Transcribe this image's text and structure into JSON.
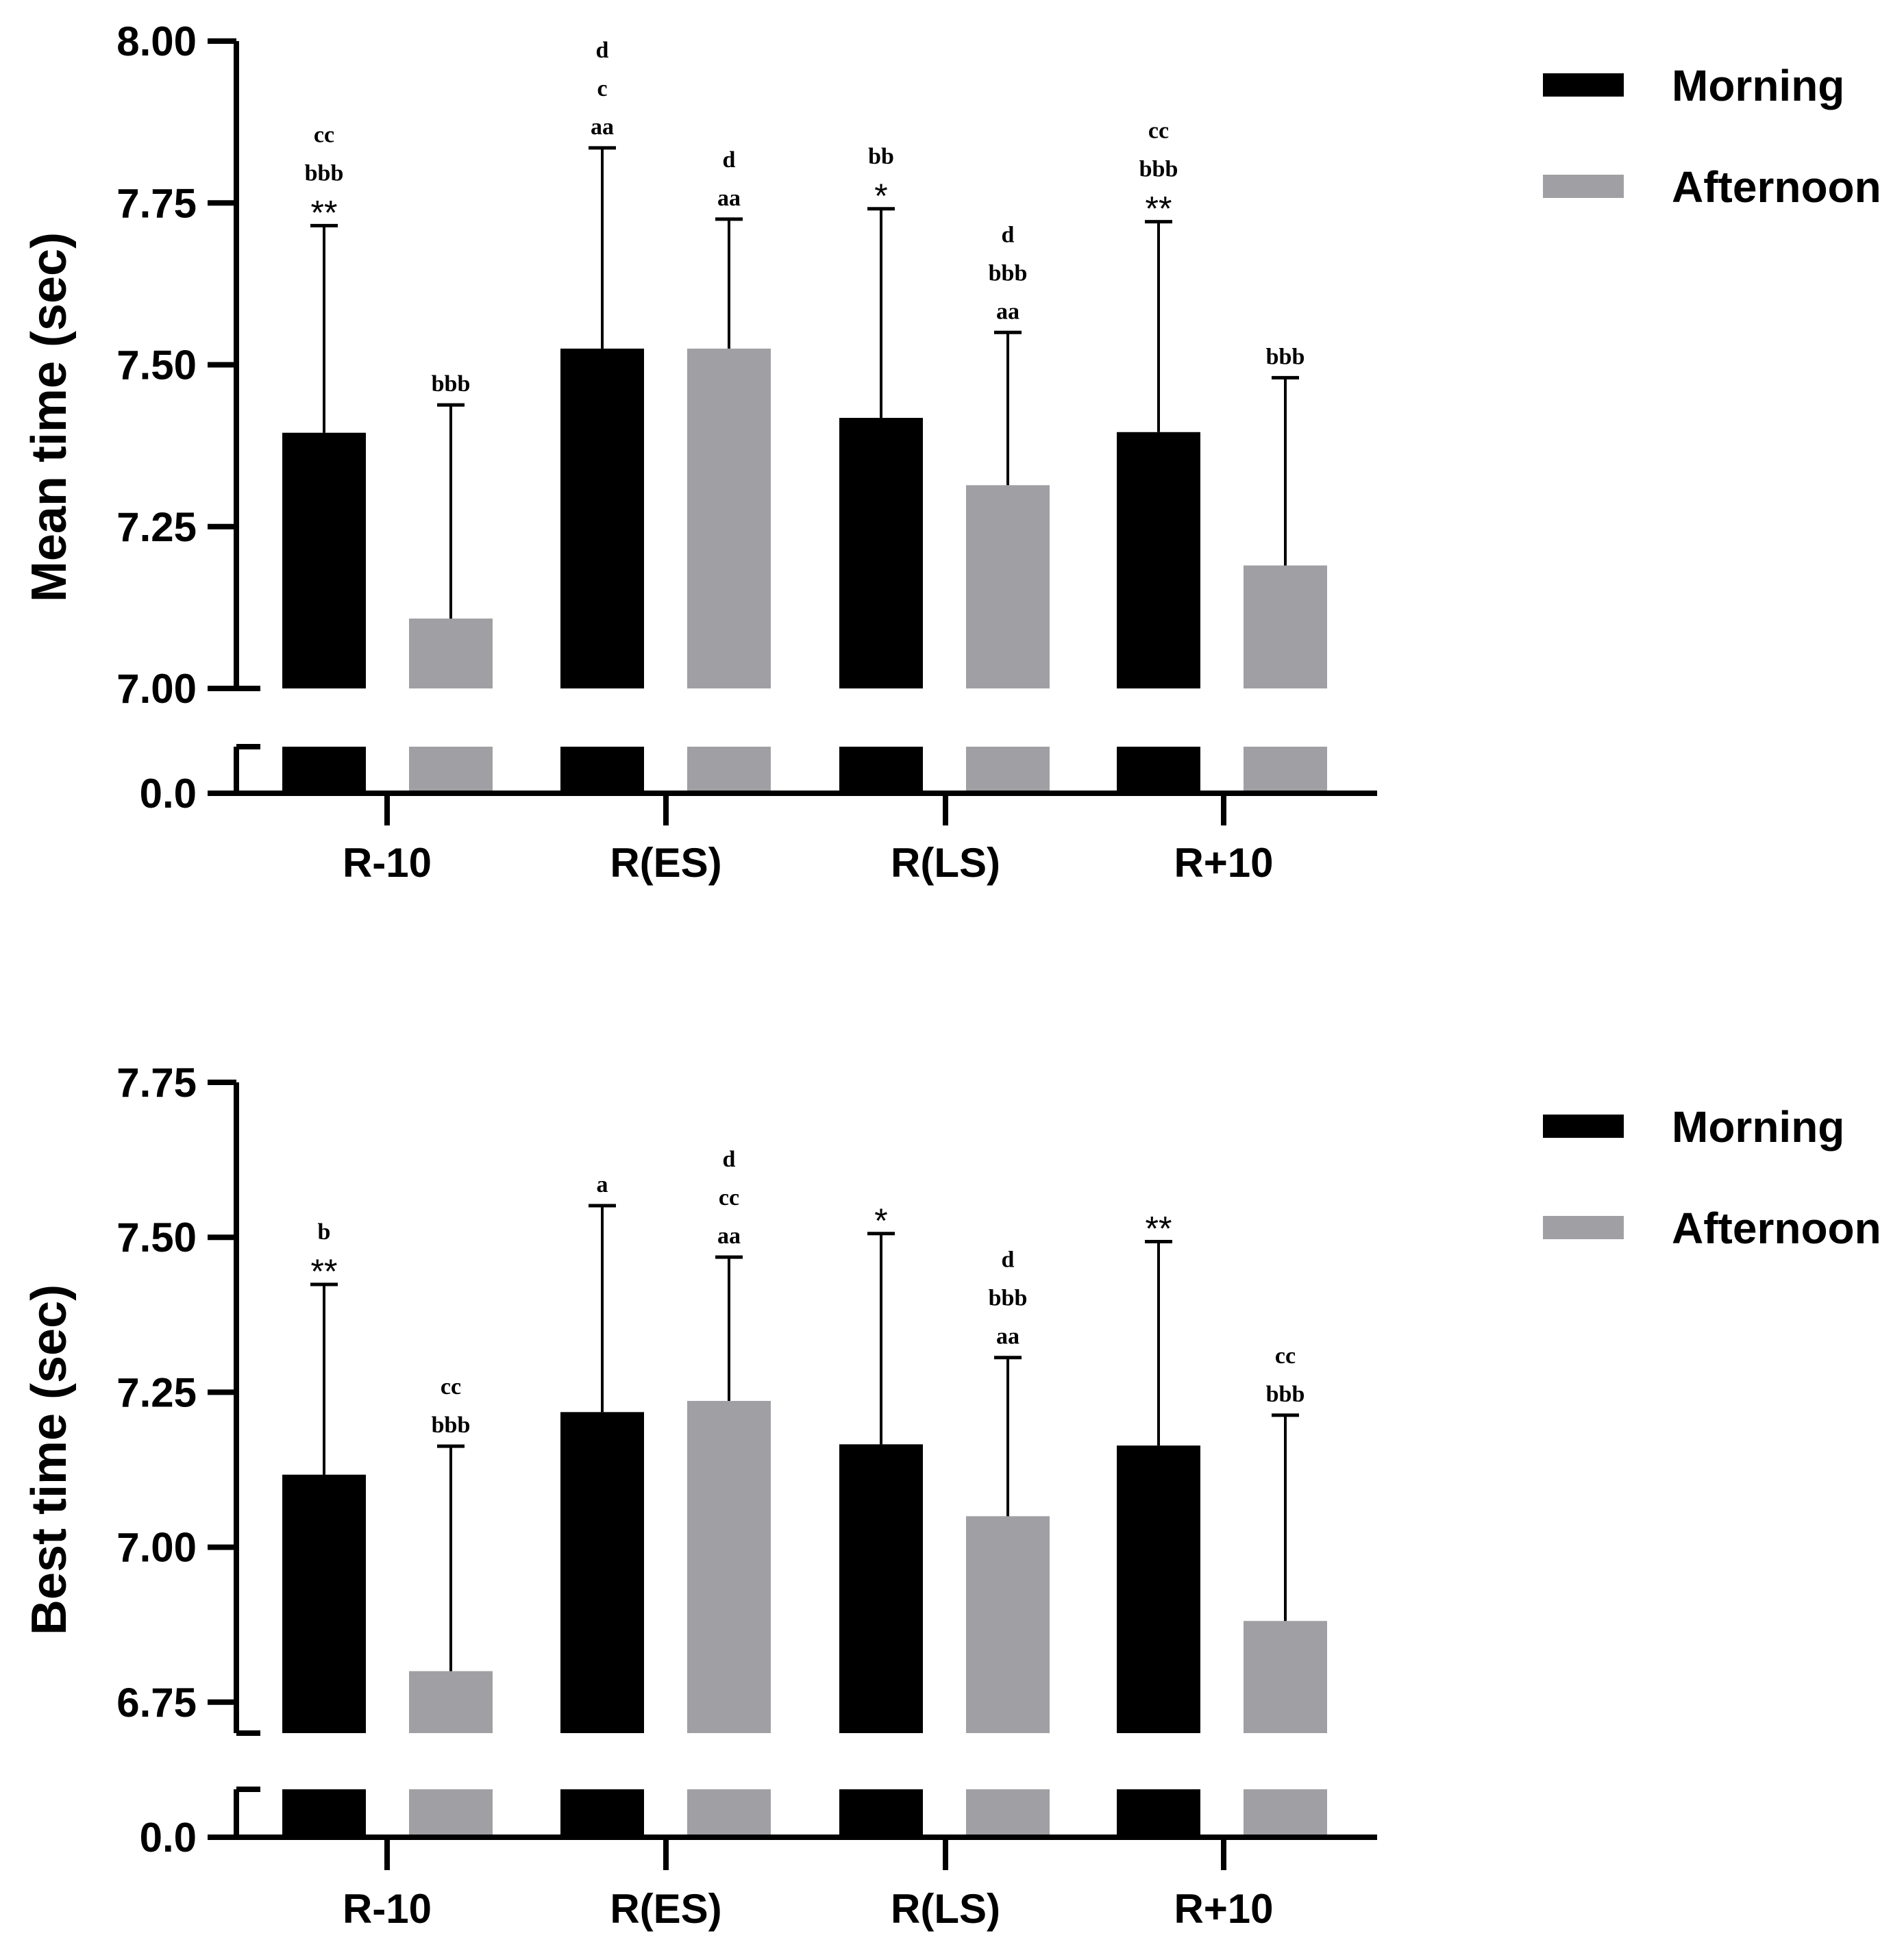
{
  "colors": {
    "morning": "#000000",
    "afternoon": "#a0a0a4",
    "axis": "#000000"
  },
  "chart_data": [
    {
      "type": "bar",
      "ylabel": "Mean time (sec)",
      "categories": [
        "R-10",
        "R(ES)",
        "R(LS)",
        "R+10"
      ],
      "ylim": [
        7.0,
        8.0
      ],
      "yticks": [
        "7.00",
        "7.25",
        "7.50",
        "7.75",
        "8.00"
      ],
      "broken_axis_tick": "0.0",
      "legend_position": "top-right",
      "series": [
        {
          "name": "Morning",
          "values": [
            7.395,
            7.525,
            7.418,
            7.396
          ],
          "errors": [
            0.32,
            0.31,
            0.323,
            0.325
          ],
          "annotations": [
            [
              "cc",
              "bbb",
              "**"
            ],
            [
              "d",
              "c",
              "aa"
            ],
            [
              "bb",
              "*"
            ],
            [
              "cc",
              "bbb",
              "**"
            ]
          ]
        },
        {
          "name": "Afternoon",
          "values": [
            7.108,
            7.525,
            7.314,
            7.19
          ],
          "errors": [
            0.33,
            0.2,
            0.236,
            0.29
          ],
          "annotations": [
            [
              "bbb"
            ],
            [
              "d",
              "aa"
            ],
            [
              "d",
              "bbb",
              "aa"
            ],
            [
              "bbb"
            ]
          ]
        }
      ]
    },
    {
      "type": "bar",
      "ylabel": "Best time (sec)",
      "categories": [
        "R-10",
        "R(ES)",
        "R(LS)",
        "R+10"
      ],
      "ylim": [
        6.7,
        7.75
      ],
      "yticks": [
        "6.75",
        "7.00",
        "7.25",
        "7.50",
        "7.75"
      ],
      "broken_axis_tick": "0.0",
      "legend_position": "top-right",
      "series": [
        {
          "name": "Morning",
          "values": [
            7.117,
            7.218,
            7.166,
            7.164
          ],
          "errors": [
            0.307,
            0.333,
            0.34,
            0.329
          ],
          "annotations": [
            [
              "b",
              "**"
            ],
            [
              "a"
            ],
            [
              "*"
            ],
            [
              "**"
            ]
          ]
        },
        {
          "name": "Afternoon",
          "values": [
            6.8,
            7.236,
            7.05,
            6.881
          ],
          "errors": [
            0.363,
            0.232,
            0.256,
            0.332
          ],
          "annotations": [
            [
              "cc",
              "bbb"
            ],
            [
              "d",
              "cc",
              "aa"
            ],
            [
              "d",
              "bbb",
              "aa"
            ],
            [
              "cc",
              "bbb"
            ]
          ]
        }
      ]
    }
  ]
}
